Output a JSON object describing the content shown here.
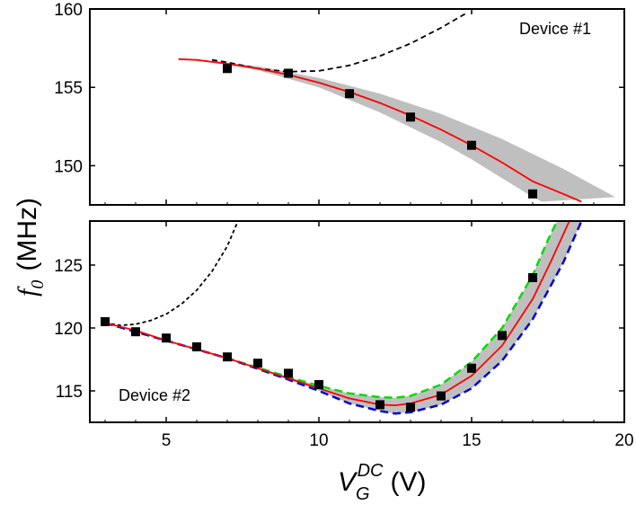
{
  "figure": {
    "ylabel_main": "f",
    "ylabel_sub": "0",
    "ylabel_unit": "(MHz)",
    "xlabel_main": "V",
    "xlabel_sub": "G",
    "xlabel_sup": "DC",
    "xlabel_unit": "(V)"
  },
  "chart_data": [
    {
      "type": "scatter",
      "annotation": "Device #1",
      "xlim": [
        2.5,
        20
      ],
      "ylim": [
        147.5,
        160
      ],
      "x_ticks": [
        5,
        10,
        15,
        20
      ],
      "x_tick_labels": [
        "",
        "",
        "",
        ""
      ],
      "y_ticks": [
        150,
        155,
        160
      ],
      "y_tick_labels": [
        "150",
        "155",
        "160"
      ],
      "grid": false,
      "colors": {
        "points": "#000000",
        "fit": "#ff0000",
        "band": "#bfbfbf",
        "dashed": "#000000"
      },
      "points": [
        {
          "x": 7,
          "y": 156.2
        },
        {
          "x": 9,
          "y": 155.9
        },
        {
          "x": 11,
          "y": 154.6
        },
        {
          "x": 13,
          "y": 153.1
        },
        {
          "x": 15,
          "y": 151.3
        },
        {
          "x": 17,
          "y": 148.2
        }
      ],
      "fit_curve": [
        {
          "x": 5.4,
          "y": 156.8
        },
        {
          "x": 6,
          "y": 156.75
        },
        {
          "x": 7,
          "y": 156.5
        },
        {
          "x": 8,
          "y": 156.2
        },
        {
          "x": 9,
          "y": 155.8
        },
        {
          "x": 10,
          "y": 155.3
        },
        {
          "x": 11,
          "y": 154.7
        },
        {
          "x": 12,
          "y": 154.0
        },
        {
          "x": 13,
          "y": 153.2
        },
        {
          "x": 14,
          "y": 152.3
        },
        {
          "x": 15,
          "y": 151.3
        },
        {
          "x": 16,
          "y": 150.2
        },
        {
          "x": 17,
          "y": 149.0
        },
        {
          "x": 18,
          "y": 148.2
        },
        {
          "x": 18.6,
          "y": 147.7
        }
      ],
      "band_upper": [
        {
          "x": 6.5,
          "y": 156.7
        },
        {
          "x": 8,
          "y": 156.35
        },
        {
          "x": 10,
          "y": 155.6
        },
        {
          "x": 12,
          "y": 154.6
        },
        {
          "x": 14,
          "y": 153.3
        },
        {
          "x": 16,
          "y": 151.7
        },
        {
          "x": 18,
          "y": 149.8
        },
        {
          "x": 19.7,
          "y": 148.0
        }
      ],
      "band_lower": [
        {
          "x": 6.5,
          "y": 156.7
        },
        {
          "x": 8,
          "y": 156.1
        },
        {
          "x": 10,
          "y": 155.0
        },
        {
          "x": 12,
          "y": 153.4
        },
        {
          "x": 14,
          "y": 151.5
        },
        {
          "x": 15,
          "y": 150.4
        },
        {
          "x": 16,
          "y": 149.2
        },
        {
          "x": 17,
          "y": 148.0
        },
        {
          "x": 17.3,
          "y": 147.7
        }
      ],
      "dashed_curve": [
        {
          "x": 6.5,
          "y": 156.75
        },
        {
          "x": 7,
          "y": 156.6
        },
        {
          "x": 8,
          "y": 156.2
        },
        {
          "x": 9,
          "y": 156.0
        },
        {
          "x": 10,
          "y": 156.05
        },
        {
          "x": 11,
          "y": 156.4
        },
        {
          "x": 12,
          "y": 157.0
        },
        {
          "x": 13,
          "y": 157.8
        },
        {
          "x": 14,
          "y": 158.8
        },
        {
          "x": 14.8,
          "y": 159.7
        }
      ]
    },
    {
      "type": "scatter",
      "annotation": "Device #2",
      "xlim": [
        2.5,
        20
      ],
      "ylim": [
        112.5,
        128.5
      ],
      "x_ticks": [
        5,
        10,
        15,
        20
      ],
      "x_tick_labels": [
        "5",
        "10",
        "15",
        "20"
      ],
      "y_ticks": [
        115,
        120,
        125
      ],
      "y_tick_labels": [
        "115",
        "120",
        "125"
      ],
      "grid": false,
      "colors": {
        "points": "#000000",
        "fit": "#ff0000",
        "band": "#bfbfbf",
        "upper_dashed": "#00dd00",
        "lower_dashed": "#0000dd",
        "black_dashed": "#000000"
      },
      "points": [
        {
          "x": 3,
          "y": 120.5
        },
        {
          "x": 4,
          "y": 119.7
        },
        {
          "x": 5,
          "y": 119.2
        },
        {
          "x": 6,
          "y": 118.5
        },
        {
          "x": 7,
          "y": 117.7
        },
        {
          "x": 8,
          "y": 117.2
        },
        {
          "x": 9,
          "y": 116.4
        },
        {
          "x": 10,
          "y": 115.5
        },
        {
          "x": 12,
          "y": 113.9
        },
        {
          "x": 13,
          "y": 113.7
        },
        {
          "x": 14,
          "y": 114.6
        },
        {
          "x": 15,
          "y": 116.8
        },
        {
          "x": 16,
          "y": 119.4
        },
        {
          "x": 17,
          "y": 124.0
        }
      ],
      "fit_curve": [
        {
          "x": 3,
          "y": 120.4
        },
        {
          "x": 4,
          "y": 119.8
        },
        {
          "x": 5,
          "y": 119.0
        },
        {
          "x": 6,
          "y": 118.3
        },
        {
          "x": 7,
          "y": 117.6
        },
        {
          "x": 8,
          "y": 116.8
        },
        {
          "x": 9,
          "y": 116.0
        },
        {
          "x": 10,
          "y": 115.2
        },
        {
          "x": 11,
          "y": 114.4
        },
        {
          "x": 12,
          "y": 113.9
        },
        {
          "x": 12.5,
          "y": 113.85
        },
        {
          "x": 13,
          "y": 114.0
        },
        {
          "x": 14,
          "y": 114.7
        },
        {
          "x": 15,
          "y": 116.2
        },
        {
          "x": 16,
          "y": 118.6
        },
        {
          "x": 17,
          "y": 122.3
        },
        {
          "x": 17.6,
          "y": 125.3
        },
        {
          "x": 18.2,
          "y": 128.5
        }
      ],
      "band_upper": [
        {
          "x": 3,
          "y": 120.4
        },
        {
          "x": 5,
          "y": 119.0
        },
        {
          "x": 7,
          "y": 117.6
        },
        {
          "x": 9,
          "y": 116.1
        },
        {
          "x": 10,
          "y": 115.4
        },
        {
          "x": 11,
          "y": 114.8
        },
        {
          "x": 12,
          "y": 114.5
        },
        {
          "x": 12.5,
          "y": 114.45
        },
        {
          "x": 13,
          "y": 114.6
        },
        {
          "x": 14,
          "y": 115.5
        },
        {
          "x": 15,
          "y": 117.3
        },
        {
          "x": 16,
          "y": 120.0
        },
        {
          "x": 17,
          "y": 124.2
        },
        {
          "x": 17.5,
          "y": 127.0
        },
        {
          "x": 17.8,
          "y": 128.5
        }
      ],
      "band_lower": [
        {
          "x": 3,
          "y": 120.4
        },
        {
          "x": 5,
          "y": 119.0
        },
        {
          "x": 7,
          "y": 117.6
        },
        {
          "x": 9,
          "y": 115.9
        },
        {
          "x": 10,
          "y": 115.0
        },
        {
          "x": 11,
          "y": 114.0
        },
        {
          "x": 12,
          "y": 113.4
        },
        {
          "x": 12.5,
          "y": 113.2
        },
        {
          "x": 13,
          "y": 113.3
        },
        {
          "x": 14,
          "y": 113.9
        },
        {
          "x": 15,
          "y": 115.2
        },
        {
          "x": 16,
          "y": 117.4
        },
        {
          "x": 17,
          "y": 120.7
        },
        {
          "x": 18,
          "y": 125.2
        },
        {
          "x": 18.6,
          "y": 128.5
        }
      ],
      "black_dashed_curve": [
        {
          "x": 3,
          "y": 120.4
        },
        {
          "x": 3.5,
          "y": 120.2
        },
        {
          "x": 4,
          "y": 120.3
        },
        {
          "x": 4.5,
          "y": 120.6
        },
        {
          "x": 5,
          "y": 121.1
        },
        {
          "x": 5.5,
          "y": 121.9
        },
        {
          "x": 6,
          "y": 123.0
        },
        {
          "x": 6.5,
          "y": 124.5
        },
        {
          "x": 7,
          "y": 126.5
        },
        {
          "x": 7.35,
          "y": 128.5
        }
      ]
    }
  ]
}
